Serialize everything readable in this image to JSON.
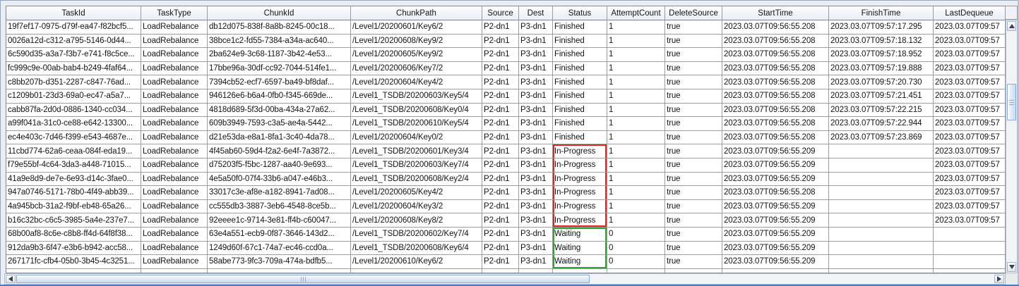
{
  "colors": {
    "grid_line": "#9c9c9c",
    "in_progress_box": "#dc2a1e",
    "waiting_box": "#35a033",
    "frame_bottom_blue": "#4e7cc1"
  },
  "table": {
    "columns": [
      {
        "key": "taskId",
        "label": "TaskId"
      },
      {
        "key": "taskType",
        "label": "TaskType"
      },
      {
        "key": "chunkId",
        "label": "ChunkId"
      },
      {
        "key": "chunkPath",
        "label": "ChunkPath"
      },
      {
        "key": "source",
        "label": "Source"
      },
      {
        "key": "dest",
        "label": "Dest"
      },
      {
        "key": "status",
        "label": "Status"
      },
      {
        "key": "attemptCount",
        "label": "AttemptCount"
      },
      {
        "key": "deleteSource",
        "label": "DeleteSource"
      },
      {
        "key": "startTime",
        "label": "StartTime"
      },
      {
        "key": "finishTime",
        "label": "FinishTime"
      },
      {
        "key": "lastDequeue",
        "label": "LastDequeue"
      }
    ],
    "rows": [
      {
        "taskId": "19f7ef17-0975-d79f-ea47-f82bcf5...",
        "taskType": "LoadRebalance",
        "chunkId": "db12d075-838f-8a8b-8245-00c18...",
        "chunkPath": "/Level1/20200601/Key6/2",
        "source": "P2-dn1",
        "dest": "P3-dn1",
        "status": "Finished",
        "attemptCount": "1",
        "deleteSource": "true",
        "startTime": "2023.03.07T09:56:55.208",
        "finishTime": "2023.03.07T09:57:17.295",
        "lastDequeue": "2023.03.07T09:57"
      },
      {
        "taskId": "0026a12d-c312-a795-5146-0d44...",
        "taskType": "LoadRebalance",
        "chunkId": "38bce1c2-fd55-7384-a34a-ac640...",
        "chunkPath": "/Level1/20200608/Key9/2",
        "source": "P2-dn1",
        "dest": "P3-dn1",
        "status": "Finished",
        "attemptCount": "1",
        "deleteSource": "true",
        "startTime": "2023.03.07T09:56:55.208",
        "finishTime": "2023.03.07T09:57:18.132",
        "lastDequeue": "2023.03.07T09:57"
      },
      {
        "taskId": "6c590d35-a3a7-f3b7-e741-f8c5ce...",
        "taskType": "LoadRebalance",
        "chunkId": "2ba624e9-3c68-1187-3b42-4e53...",
        "chunkPath": "/Level1/20200605/Key9/2",
        "source": "P2-dn1",
        "dest": "P3-dn1",
        "status": "Finished",
        "attemptCount": "1",
        "deleteSource": "true",
        "startTime": "2023.03.07T09:56:55.208",
        "finishTime": "2023.03.07T09:57:18.952",
        "lastDequeue": "2023.03.07T09:57"
      },
      {
        "taskId": "fc999c9e-00ab-bab4-b249-4faf64...",
        "taskType": "LoadRebalance",
        "chunkId": "17bbe96a-30df-cc92-7044-514fe1...",
        "chunkPath": "/Level1/20200606/Key7/2",
        "source": "P2-dn1",
        "dest": "P3-dn1",
        "status": "Finished",
        "attemptCount": "1",
        "deleteSource": "true",
        "startTime": "2023.03.07T09:56:55.208",
        "finishTime": "2023.03.07T09:57:19.888",
        "lastDequeue": "2023.03.07T09:57"
      },
      {
        "taskId": "c8bb207b-d351-2287-c847-76ad...",
        "taskType": "LoadRebalance",
        "chunkId": "7394cb52-ecf7-6597-ba49-bf8daf...",
        "chunkPath": "/Level1/20200604/Key4/2",
        "source": "P2-dn1",
        "dest": "P3-dn1",
        "status": "Finished",
        "attemptCount": "1",
        "deleteSource": "true",
        "startTime": "2023.03.07T09:56:55.208",
        "finishTime": "2023.03.07T09:57:20.730",
        "lastDequeue": "2023.03.07T09:57"
      },
      {
        "taskId": "c1209b01-23d3-69a0-ec47-a5a7...",
        "taskType": "LoadRebalance",
        "chunkId": "946126e6-b6a4-0fb0-f345-669de...",
        "chunkPath": "/Level1_TSDB/20200603/Key5/4",
        "source": "P2-dn1",
        "dest": "P3-dn1",
        "status": "Finished",
        "attemptCount": "1",
        "deleteSource": "true",
        "startTime": "2023.03.07T09:56:55.208",
        "finishTime": "2023.03.07T09:57:21.451",
        "lastDequeue": "2023.03.07T09:57"
      },
      {
        "taskId": "cabb87fa-2d0d-0886-1340-cc034...",
        "taskType": "LoadRebalance",
        "chunkId": "4818d689-5f3d-00ba-434a-27a62...",
        "chunkPath": "/Level1_TSDB/20200608/Key0/4",
        "source": "P2-dn1",
        "dest": "P3-dn1",
        "status": "Finished",
        "attemptCount": "1",
        "deleteSource": "true",
        "startTime": "2023.03.07T09:56:55.208",
        "finishTime": "2023.03.07T09:57:22.215",
        "lastDequeue": "2023.03.07T09:57"
      },
      {
        "taskId": "a99f041a-31c0-ce88-e642-13300...",
        "taskType": "LoadRebalance",
        "chunkId": "609b3949-7593-c3a5-ae4a-5442...",
        "chunkPath": "/Level1_TSDB/20200610/Key5/4",
        "source": "P2-dn1",
        "dest": "P3-dn1",
        "status": "Finished",
        "attemptCount": "1",
        "deleteSource": "true",
        "startTime": "2023.03.07T09:56:55.208",
        "finishTime": "2023.03.07T09:57:22.944",
        "lastDequeue": "2023.03.07T09:57"
      },
      {
        "taskId": "ec4e403c-7d46-f399-e543-4687e...",
        "taskType": "LoadRebalance",
        "chunkId": "d21e53da-e8a1-8fa1-3c40-4da78...",
        "chunkPath": "/Level1/20200604/Key0/2",
        "source": "P2-dn1",
        "dest": "P3-dn1",
        "status": "Finished",
        "attemptCount": "1",
        "deleteSource": "true",
        "startTime": "2023.03.07T09:56:55.208",
        "finishTime": "2023.03.07T09:57:23.869",
        "lastDequeue": "2023.03.07T09:57"
      },
      {
        "taskId": "11cbd774-62a6-ceaa-084f-eda19...",
        "taskType": "LoadRebalance",
        "chunkId": "4f45ab60-59d4-f2a2-6e4f-7a3872...",
        "chunkPath": "/Level1_TSDB/20200601/Key3/4",
        "source": "P2-dn1",
        "dest": "P3-dn1",
        "status": "In-Progress",
        "attemptCount": "1",
        "deleteSource": "true",
        "startTime": "2023.03.07T09:56:55.209",
        "finishTime": "",
        "lastDequeue": "2023.03.07T09:57"
      },
      {
        "taskId": "f79e55bf-4c64-3da3-a448-71015...",
        "taskType": "LoadRebalance",
        "chunkId": "d75203f5-f5bc-1287-aa40-9e693...",
        "chunkPath": "/Level1_TSDB/20200603/Key7/4",
        "source": "P2-dn1",
        "dest": "P3-dn1",
        "status": "In-Progress",
        "attemptCount": "1",
        "deleteSource": "true",
        "startTime": "2023.03.07T09:56:55.209",
        "finishTime": "",
        "lastDequeue": "2023.03.07T09:57"
      },
      {
        "taskId": "41a9e8d9-de7e-6e93-d14c-3fae0...",
        "taskType": "LoadRebalance",
        "chunkId": "4e5a50f0-07f4-33b6-a047-e46b3...",
        "chunkPath": "/Level1_TSDB/20200608/Key2/4",
        "source": "P2-dn1",
        "dest": "P3-dn1",
        "status": "In-Progress",
        "attemptCount": "1",
        "deleteSource": "true",
        "startTime": "2023.03.07T09:56:55.209",
        "finishTime": "",
        "lastDequeue": "2023.03.07T09:57"
      },
      {
        "taskId": "947a0746-5171-78b0-4f49-abb39...",
        "taskType": "LoadRebalance",
        "chunkId": "33017c3e-af8e-a182-8941-7ad08...",
        "chunkPath": "/Level1/20200605/Key4/2",
        "source": "P2-dn1",
        "dest": "P3-dn1",
        "status": "In-Progress",
        "attemptCount": "1",
        "deleteSource": "true",
        "startTime": "2023.03.07T09:56:55.208",
        "finishTime": "",
        "lastDequeue": "2023.03.07T09:57"
      },
      {
        "taskId": "4a945bcb-31a2-f9bf-eb48-65a26...",
        "taskType": "LoadRebalance",
        "chunkId": "cc555db3-3887-3eb6-4548-8ce5b...",
        "chunkPath": "/Level1/20200604/Key3/2",
        "source": "P2-dn1",
        "dest": "P3-dn1",
        "status": "In-Progress",
        "attemptCount": "1",
        "deleteSource": "true",
        "startTime": "2023.03.07T09:56:55.209",
        "finishTime": "",
        "lastDequeue": "2023.03.07T09:57"
      },
      {
        "taskId": "b16c32bc-c6c5-3985-5a4e-237e7...",
        "taskType": "LoadRebalance",
        "chunkId": "92eeee1c-9714-3e81-ff4b-c60047...",
        "chunkPath": "/Level1/20200608/Key8/2",
        "source": "P2-dn1",
        "dest": "P3-dn1",
        "status": "In-Progress",
        "attemptCount": "1",
        "deleteSource": "true",
        "startTime": "2023.03.07T09:56:55.209",
        "finishTime": "",
        "lastDequeue": "2023.03.07T09:57"
      },
      {
        "taskId": "68b00af8-8c6e-c8b8-ff4d-64f8f38...",
        "taskType": "LoadRebalance",
        "chunkId": "63e4a551-ecb9-0f87-3646-143d2...",
        "chunkPath": "/Level1_TSDB/20200602/Key7/4",
        "source": "P2-dn1",
        "dest": "P3-dn1",
        "status": "Waiting",
        "attemptCount": "0",
        "deleteSource": "true",
        "startTime": "2023.03.07T09:56:55.209",
        "finishTime": "",
        "lastDequeue": ""
      },
      {
        "taskId": "912da9b3-6f47-e3b6-b942-acc58...",
        "taskType": "LoadRebalance",
        "chunkId": "1249d60f-67c1-74a7-ec46-ccd0a...",
        "chunkPath": "/Level1_TSDB/20200608/Key6/4",
        "source": "P2-dn1",
        "dest": "P3-dn1",
        "status": "Waiting",
        "attemptCount": "0",
        "deleteSource": "true",
        "startTime": "2023.03.07T09:56:55.209",
        "finishTime": "",
        "lastDequeue": ""
      },
      {
        "taskId": "267171fc-cfb4-05b0-3b45-4c3251...",
        "taskType": "LoadRebalance",
        "chunkId": "58abe773-9fc3-709a-474a-bdfb5...",
        "chunkPath": "/Level1/20200610/Key6/2",
        "source": "P2-dn1",
        "dest": "P3-dn1",
        "status": "Waiting",
        "attemptCount": "0",
        "deleteSource": "true",
        "startTime": "2023.03.07T09:56:55.209",
        "finishTime": "",
        "lastDequeue": ""
      }
    ]
  }
}
